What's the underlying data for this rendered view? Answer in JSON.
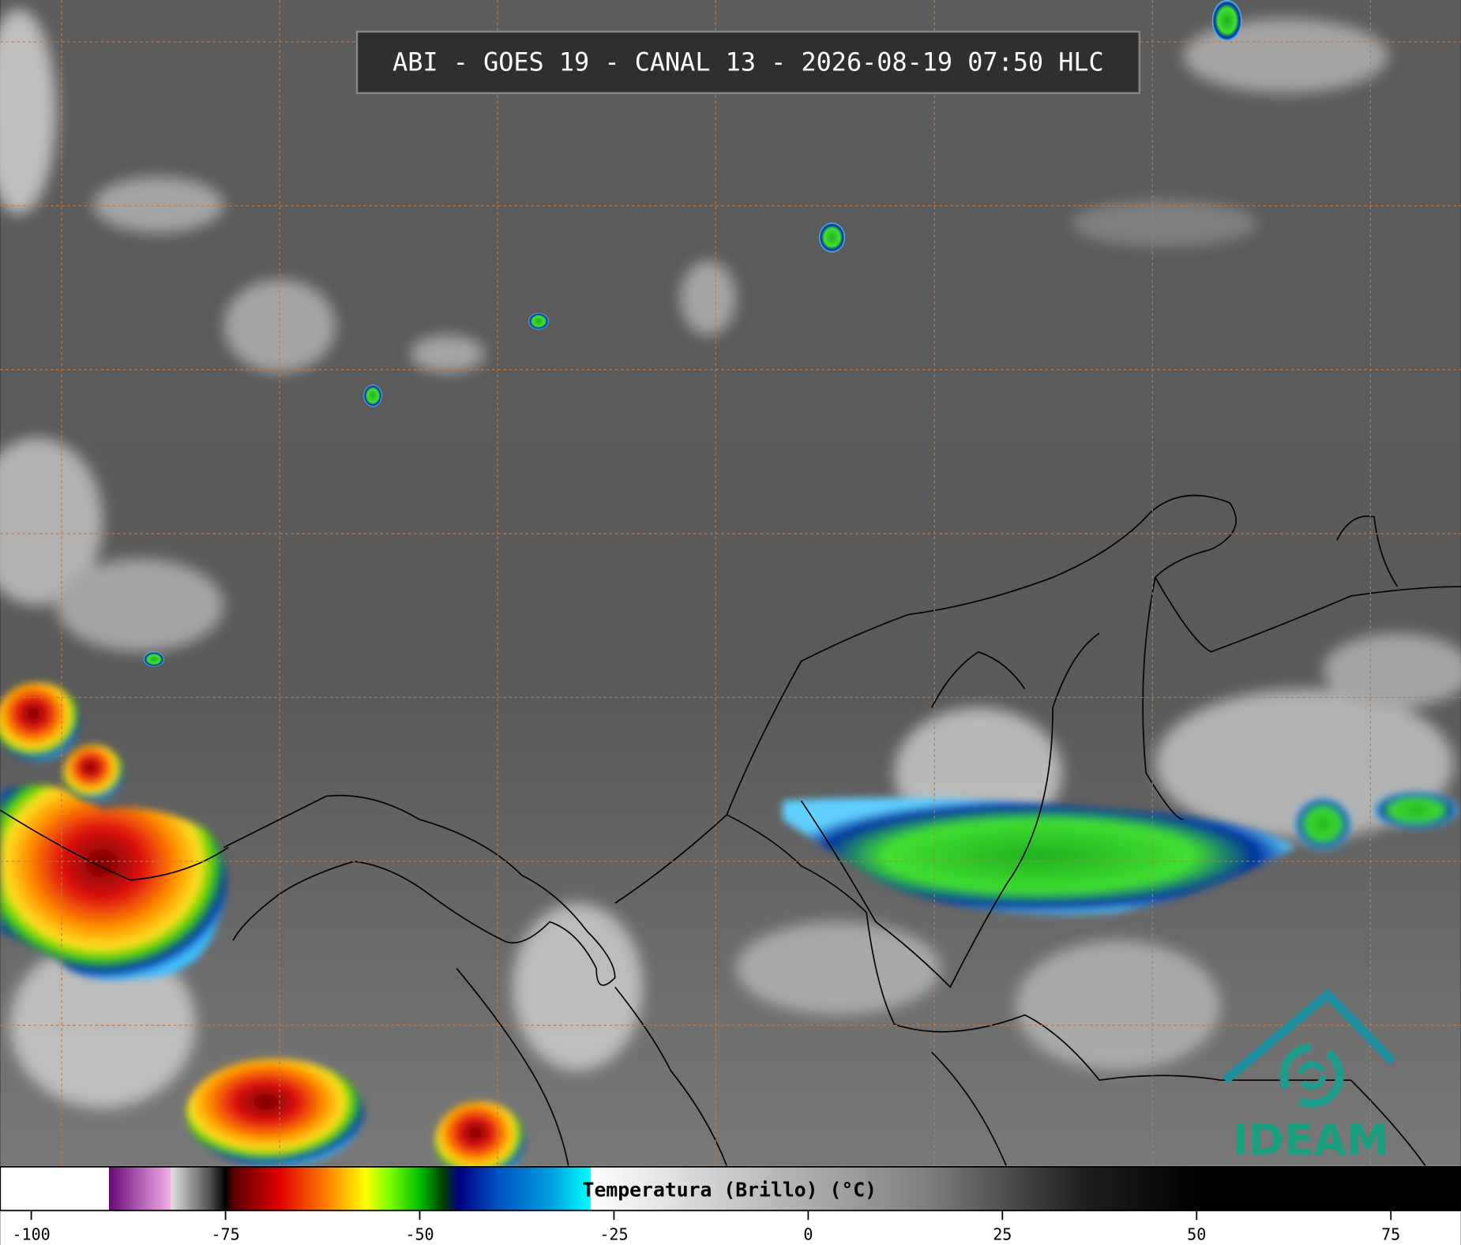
{
  "header": {
    "title": "ABI - GOES 19 - CANAL 13 - 2026-08-19 07:50 HLC"
  },
  "logo": {
    "text": "IDEAM"
  },
  "colorbar": {
    "label": "Temperatura (Brillo) (°C)",
    "xlim": [
      -104,
      84
    ],
    "ticks": [
      -100,
      -75,
      -50,
      -25,
      0,
      25,
      50,
      75
    ],
    "colormap": [
      {
        "value": -104,
        "color": "#ffffff"
      },
      {
        "value": -90,
        "color": "#ffffff"
      },
      {
        "value": -90,
        "color": "#6a0a7a"
      },
      {
        "value": -82,
        "color": "#f4b0e8"
      },
      {
        "value": -82,
        "color": "#e0e0e0"
      },
      {
        "value": -77,
        "color": "#505050"
      },
      {
        "value": -75,
        "color": "#000000"
      },
      {
        "value": -74,
        "color": "#5a0000"
      },
      {
        "value": -68,
        "color": "#e00000"
      },
      {
        "value": -62,
        "color": "#ff8000"
      },
      {
        "value": -57,
        "color": "#ffff00"
      },
      {
        "value": -54,
        "color": "#80ff00"
      },
      {
        "value": -50,
        "color": "#00c000"
      },
      {
        "value": -47,
        "color": "#004000"
      },
      {
        "value": -45,
        "color": "#000080"
      },
      {
        "value": -40,
        "color": "#0050c0"
      },
      {
        "value": -33,
        "color": "#00a0e0"
      },
      {
        "value": -28,
        "color": "#00ffff"
      },
      {
        "value": -28,
        "color": "#ffffff"
      },
      {
        "value": 15,
        "color": "#808080"
      },
      {
        "value": 35,
        "color": "#202020"
      },
      {
        "value": 50,
        "color": "#000000"
      },
      {
        "value": 84,
        "color": "#000000"
      }
    ]
  }
}
